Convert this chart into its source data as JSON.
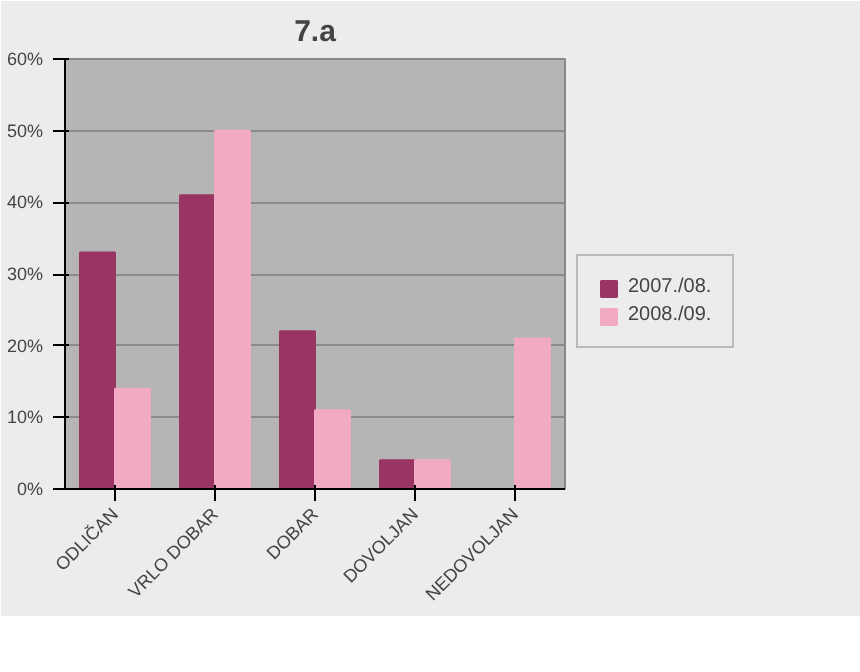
{
  "chart_data": {
    "type": "bar",
    "title": "7.a",
    "categories": [
      "ODLIČAN",
      "VRLO DOBAR",
      "DOBAR",
      "DOVOLJAN",
      "NEDOVOLJAN"
    ],
    "series": [
      {
        "name": "2007./08.",
        "color": "#9a3462",
        "values": [
          33,
          41,
          22,
          4,
          0
        ]
      },
      {
        "name": "2008./09.",
        "color": "#f2a9c4",
        "values": [
          14,
          50,
          11,
          4,
          21
        ]
      }
    ],
    "ylim": [
      0,
      60
    ],
    "yticks": [
      {
        "value": 0,
        "label": "0%"
      },
      {
        "value": 10,
        "label": "10%"
      },
      {
        "value": 20,
        "label": "20%"
      },
      {
        "value": 30,
        "label": "30%"
      },
      {
        "value": 40,
        "label": "40%"
      },
      {
        "value": 50,
        "label": "50%"
      },
      {
        "value": 60,
        "label": "60%"
      }
    ],
    "grid": "y",
    "legend": "right"
  }
}
